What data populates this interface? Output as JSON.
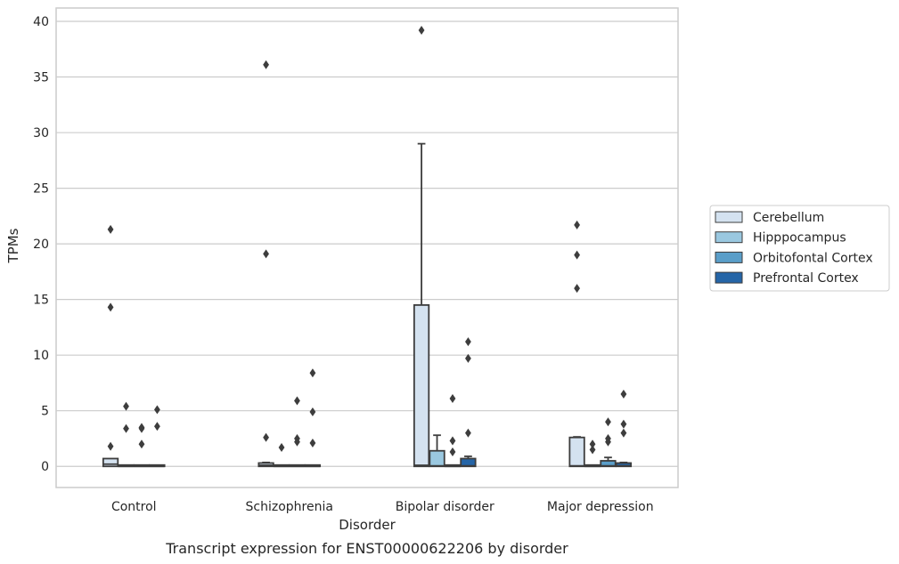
{
  "chart_data": {
    "type": "box",
    "caption": "Transcript expression for ENST00000622206 by disorder",
    "xlabel": "Disorder",
    "ylabel": "TPMs",
    "ylim": [
      -1.9,
      41.2
    ],
    "yticks": [
      0,
      5,
      10,
      15,
      20,
      25,
      30,
      35,
      40
    ],
    "grid": true,
    "legend_position": "right",
    "categories": [
      "Control",
      "Schizophrenia",
      "Bipolar disorder",
      "Major depression"
    ],
    "series": [
      {
        "name": "Cerebellum",
        "color": "#d4e2f0",
        "boxes": [
          {
            "q1": 0,
            "median": 0.2,
            "q3": 0.7,
            "whisker_low": 0,
            "whisker_high": 0.7,
            "outliers": [
              21.3,
              14.3,
              1.8
            ]
          },
          {
            "q1": 0,
            "median": 0.1,
            "q3": 0.3,
            "whisker_low": 0,
            "whisker_high": 0.35,
            "outliers": [
              36.1,
              19.1,
              2.6
            ]
          },
          {
            "q1": 0,
            "median": 0.1,
            "q3": 14.5,
            "whisker_low": 0,
            "whisker_high": 29.0,
            "outliers": [
              39.2
            ]
          },
          {
            "q1": 0,
            "median": 0.05,
            "q3": 2.6,
            "whisker_low": 0,
            "whisker_high": 2.65,
            "outliers": [
              21.7,
              19.0,
              16.0
            ]
          }
        ]
      },
      {
        "name": "Hipppocampus",
        "color": "#9ac8e0",
        "boxes": [
          {
            "q1": 0,
            "median": 0,
            "q3": 0,
            "whisker_low": 0,
            "whisker_high": 0,
            "outliers": [
              5.4,
              3.4
            ]
          },
          {
            "q1": 0,
            "median": 0,
            "q3": 0,
            "whisker_low": 0,
            "whisker_high": 0,
            "outliers": [
              1.7
            ]
          },
          {
            "q1": 0,
            "median": 0.05,
            "q3": 1.4,
            "whisker_low": 0,
            "whisker_high": 2.8,
            "outliers": []
          },
          {
            "q1": 0,
            "median": 0,
            "q3": 0,
            "whisker_low": 0,
            "whisker_high": 0,
            "outliers": [
              2.0,
              1.5
            ]
          }
        ]
      },
      {
        "name": "Orbitofontal Cortex",
        "color": "#5a9ec9",
        "boxes": [
          {
            "q1": 0,
            "median": 0,
            "q3": 0.05,
            "whisker_low": 0,
            "whisker_high": 0.05,
            "outliers": [
              3.5,
              3.4,
              2.0
            ]
          },
          {
            "q1": 0,
            "median": 0,
            "q3": 0,
            "whisker_low": 0,
            "whisker_high": 0,
            "outliers": [
              5.9,
              2.5,
              2.2
            ]
          },
          {
            "q1": 0,
            "median": 0,
            "q3": 0,
            "whisker_low": 0,
            "whisker_high": 0,
            "outliers": [
              6.1,
              2.3,
              1.3
            ]
          },
          {
            "q1": 0,
            "median": 0.05,
            "q3": 0.5,
            "whisker_low": 0,
            "whisker_high": 0.8,
            "outliers": [
              4.0,
              2.5,
              2.2
            ]
          }
        ]
      },
      {
        "name": "Prefrontal Cortex",
        "color": "#2565a7",
        "boxes": [
          {
            "q1": 0,
            "median": 0,
            "q3": 0.05,
            "whisker_low": 0,
            "whisker_high": 0.05,
            "outliers": [
              5.1,
              3.6
            ]
          },
          {
            "q1": 0,
            "median": 0,
            "q3": 0.1,
            "whisker_low": 0,
            "whisker_high": 0.1,
            "outliers": [
              8.4,
              4.9,
              2.1
            ]
          },
          {
            "q1": 0,
            "median": 0.05,
            "q3": 0.7,
            "whisker_low": 0,
            "whisker_high": 0.9,
            "outliers": [
              11.2,
              9.7,
              3.0
            ]
          },
          {
            "q1": 0,
            "median": 0.05,
            "q3": 0.3,
            "whisker_low": 0,
            "whisker_high": 0.35,
            "outliers": [
              6.5,
              3.8,
              3.0
            ]
          }
        ]
      }
    ]
  }
}
